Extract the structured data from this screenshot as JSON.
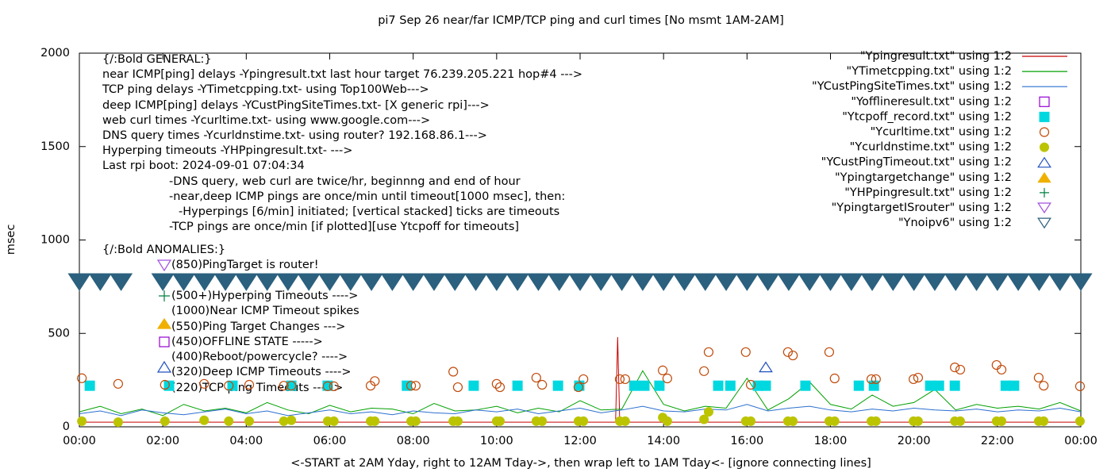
{
  "chart_data": {
    "type": "scatter",
    "title": "pi7 Sep 26  near/far ICMP/TCP ping and curl times [No msmt 1AM-2AM]",
    "x_label": "<-START at 2AM Yday, right to 12AM Tday->, then wrap left to 1AM Tday<- [ignore connecting lines]",
    "y_label": "msec",
    "xlim": [
      0,
      24
    ],
    "ylim": [
      0,
      2000
    ],
    "xticks": [
      {
        "value": 0,
        "label": "00:00"
      },
      {
        "value": 2,
        "label": "02:00"
      },
      {
        "value": 4,
        "label": "04:00"
      },
      {
        "value": 6,
        "label": "06:00"
      },
      {
        "value": 8,
        "label": "08:00"
      },
      {
        "value": 10,
        "label": "10:00"
      },
      {
        "value": 12,
        "label": "12:00"
      },
      {
        "value": 14,
        "label": "14:00"
      },
      {
        "value": 16,
        "label": "16:00"
      },
      {
        "value": 18,
        "label": "18:00"
      },
      {
        "value": 20,
        "label": "20:00"
      },
      {
        "value": 22,
        "label": "22:00"
      },
      {
        "value": 24,
        "label": "00:00"
      }
    ],
    "yticks": [
      0,
      500,
      1000,
      1500,
      2000
    ],
    "legend": "top-right",
    "annotations": [
      "{/:Bold GENERAL:}",
      "near ICMP[ping] delays -Ypingresult.txt last hour target 76.239.205.221 hop#4 --->",
      "TCP ping delays -YTimetcpping.txt- using Top100Web--->",
      "deep ICMP[ping] delays -YCustPingSiteTimes.txt- [X generic rpi]--->",
      "web curl times -Ycurltime.txt- using www.google.com--->",
      "DNS query times -Ycurldnstime.txt- using router? 192.168.86.1--->",
      "Hyperping timeouts -YHPpingresult.txt- --->",
      "Last rpi boot: 2024-09-01 07:04:34",
      "-DNS query, web curl are twice/hr, beginnng and end of hour",
      "-near,deep ICMP pings are once/min until timeout[1000 msec], then:",
      "-Hyperpings [6/min] initiated; [vertical stacked] ticks are timeouts",
      "-TCP pings are once/min [if plotted][use Ytcpoff for timeouts]",
      "{/:Bold ANOMALIES:}"
    ],
    "key_notes": [
      "(850)PingTarget is router!",
      "(500+)Hyperping Timeouts ---->",
      "(1000)Near ICMP Timeout spikes",
      "(550)Ping Target Changes --->",
      "(450)OFFLINE STATE ----->",
      "(400)Reboot/powercycle? ---->",
      "(320)Deep ICMP Timeouts ---->",
      "(220)TCP ping Timeouts ----->"
    ],
    "series": [
      {
        "name": "\"Ypingresult.txt\" using 1:2",
        "color": "#c80000",
        "marker": "line",
        "x": [
          0,
          1,
          2,
          3,
          4,
          5,
          6,
          7,
          8,
          9,
          10,
          11,
          12,
          12.85,
          12.9,
          12.95,
          13,
          14,
          15,
          16,
          17,
          18,
          19,
          20,
          21,
          22,
          23,
          24
        ],
        "values": [
          25,
          25,
          25,
          25,
          25,
          25,
          25,
          25,
          25,
          25,
          25,
          25,
          25,
          25,
          480,
          25,
          25,
          25,
          25,
          25,
          25,
          25,
          25,
          25,
          25,
          25,
          25,
          25
        ]
      },
      {
        "name": "\"YTimetcpping.txt\" using 1:2",
        "color": "#00a000",
        "marker": "line",
        "x": [
          0,
          0.5,
          1,
          1.5,
          2,
          2.5,
          3,
          3.5,
          4,
          4.5,
          5,
          5.5,
          6,
          6.5,
          7,
          7.5,
          8,
          8.5,
          9,
          9.5,
          10,
          10.5,
          11,
          11.5,
          12,
          12.5,
          13,
          13.5,
          14,
          14.5,
          15,
          15.5,
          16,
          16.5,
          17,
          17.5,
          18,
          18.5,
          19,
          19.5,
          20,
          20.5,
          21,
          21.5,
          22,
          22.5,
          23,
          23.5,
          24
        ],
        "values": [
          80,
          110,
          70,
          95,
          60,
          120,
          85,
          100,
          75,
          130,
          90,
          70,
          115,
          80,
          100,
          95,
          70,
          125,
          85,
          90,
          110,
          75,
          100,
          80,
          140,
          90,
          95,
          300,
          120,
          85,
          110,
          100,
          260,
          90,
          150,
          240,
          120,
          95,
          170,
          110,
          130,
          200,
          90,
          120,
          100,
          110,
          95,
          130,
          85
        ]
      },
      {
        "name": "\"YCustPingSiteTimes.txt\" using 1:2",
        "color": "#2a6fd0",
        "marker": "line",
        "x": [
          0,
          0.5,
          1,
          1.5,
          2,
          2.5,
          3,
          3.5,
          4,
          4.5,
          5,
          5.5,
          6,
          6.5,
          7,
          7.5,
          8,
          8.5,
          9,
          9.5,
          10,
          10.5,
          11,
          11.5,
          12,
          12.5,
          13,
          13.5,
          14,
          14.5,
          15,
          15.5,
          16,
          16.5,
          17,
          17.5,
          18,
          18.5,
          19,
          19.5,
          20,
          20.5,
          21,
          21.5,
          22,
          22.5,
          23,
          23.5,
          24
        ],
        "values": [
          70,
          85,
          60,
          90,
          75,
          65,
          80,
          95,
          70,
          85,
          60,
          75,
          90,
          70,
          80,
          65,
          85,
          75,
          70,
          90,
          80,
          95,
          70,
          85,
          100,
          75,
          90,
          110,
          85,
          80,
          95,
          90,
          120,
          85,
          100,
          110,
          90,
          80,
          95,
          85,
          100,
          90,
          85,
          95,
          80,
          90,
          85,
          100,
          80
        ]
      },
      {
        "name": "\"Yofflineresult.txt\" using 1:2",
        "color": "#9400d3",
        "marker": "open-square",
        "x": [],
        "values": []
      },
      {
        "name": "\"Ytcpoff_record.txt\" using 1:2",
        "color": "#00d8e0",
        "marker": "filled-square",
        "x": [
          0.25,
          2.15,
          3.67,
          5.08,
          5.95,
          7.85,
          9.45,
          10.5,
          11.47,
          11.98,
          13.3,
          13.54,
          13.9,
          15.31,
          15.6,
          16.26,
          16.45,
          17.4,
          18.68,
          19.04,
          20.39,
          20.6,
          20.98,
          22.2,
          22.4
        ],
        "values": [
          220,
          220,
          220,
          220,
          220,
          220,
          220,
          220,
          220,
          220,
          220,
          220,
          220,
          220,
          220,
          220,
          220,
          220,
          220,
          220,
          220,
          220,
          220,
          220,
          220
        ]
      },
      {
        "name": "\"Ycurltime.txt\" using 1:2",
        "color": "#c04a0a",
        "marker": "open-circle",
        "x": [
          0.06,
          0.93,
          2.05,
          2.99,
          3.58,
          4.07,
          4.9,
          5.08,
          5.95,
          6.1,
          6.98,
          7.08,
          7.95,
          8.06,
          8.96,
          9.07,
          10.0,
          10.08,
          10.95,
          11.09,
          11.96,
          12.08,
          12.95,
          13.08,
          13.98,
          14.09,
          14.97,
          15.08,
          15.97,
          16.09,
          16.98,
          17.1,
          17.97,
          18.1,
          18.98,
          19.09,
          19.99,
          20.1,
          20.98,
          21.11,
          21.98,
          22.1,
          22.99,
          23.11,
          23.98
        ],
        "values": [
          260,
          230,
          225,
          230,
          220,
          225,
          220,
          220,
          217,
          217,
          220,
          245,
          220,
          220,
          295,
          212,
          230,
          212,
          263,
          225,
          212,
          255,
          255,
          255,
          302,
          259,
          298,
          400,
          400,
          225,
          400,
          382,
          400,
          259,
          255,
          255,
          255,
          263,
          318,
          306,
          331,
          306,
          263,
          220,
          217
        ]
      },
      {
        "name": "\"Ycurldnstime.txt\" using 1:2",
        "color": "#bcc400",
        "marker": "filled-circle",
        "x": [
          0.06,
          0.93,
          2.05,
          2.99,
          3.58,
          4.07,
          4.9,
          5.08,
          5.95,
          6.1,
          6.98,
          7.08,
          7.95,
          8.06,
          8.96,
          9.07,
          10.0,
          10.08,
          10.95,
          11.09,
          11.96,
          12.08,
          12.95,
          13.08,
          13.98,
          14.09,
          14.97,
          15.08,
          15.97,
          16.09,
          16.98,
          17.1,
          17.97,
          18.1,
          18.98,
          19.09,
          19.99,
          20.1,
          20.98,
          21.11,
          21.98,
          22.1,
          22.99,
          23.11,
          23.98
        ],
        "values": [
          30,
          25,
          30,
          35,
          30,
          30,
          30,
          35,
          30,
          30,
          30,
          30,
          30,
          30,
          30,
          30,
          30,
          30,
          30,
          30,
          30,
          30,
          30,
          30,
          50,
          30,
          40,
          80,
          30,
          30,
          30,
          30,
          30,
          30,
          30,
          30,
          30,
          30,
          30,
          30,
          30,
          30,
          30,
          30,
          30
        ]
      },
      {
        "name": "\"YCustPingTimeout.txt\" using 1:2",
        "color": "#2050c0",
        "marker": "open-triangle",
        "x": [
          16.45
        ],
        "values": [
          320
        ]
      },
      {
        "name": "\"Ypingtargetchange\" using 1:2",
        "color": "#f0b000",
        "marker": "filled-triangle",
        "x": [],
        "values": []
      },
      {
        "name": "\"YHPpingresult.txt\" using 1:2",
        "color": "#008040",
        "marker": "plus",
        "x": [],
        "values": []
      },
      {
        "name": "\"YpingtargetISrouter\" using 1:2",
        "color": "#a050e0",
        "marker": "open-down-triangle",
        "x": [],
        "values": []
      },
      {
        "name": "\"Ynoipv6\" using 1:2",
        "color": "#2b607e",
        "marker": "filled-down-triangle",
        "x": [
          0,
          0.5,
          1,
          2,
          2.5,
          3,
          3.5,
          4,
          4.5,
          5,
          5.5,
          6,
          6.5,
          7,
          7.5,
          8,
          8.5,
          9,
          9.5,
          10,
          10.5,
          11,
          11.5,
          12,
          12.5,
          13,
          13.5,
          14,
          14.5,
          15,
          15.5,
          16,
          16.5,
          17,
          17.5,
          18,
          18.5,
          19,
          19.5,
          20,
          20.5,
          21,
          21.5,
          22,
          22.5,
          23,
          23.5,
          24
        ],
        "values": [
          775,
          775,
          775,
          775,
          775,
          775,
          775,
          775,
          775,
          775,
          775,
          775,
          775,
          775,
          775,
          775,
          775,
          775,
          775,
          775,
          775,
          775,
          775,
          775,
          775,
          775,
          775,
          775,
          775,
          775,
          775,
          775,
          775,
          775,
          775,
          775,
          775,
          775,
          775,
          775,
          775,
          775,
          775,
          775,
          775,
          775,
          775,
          775
        ]
      }
    ]
  }
}
